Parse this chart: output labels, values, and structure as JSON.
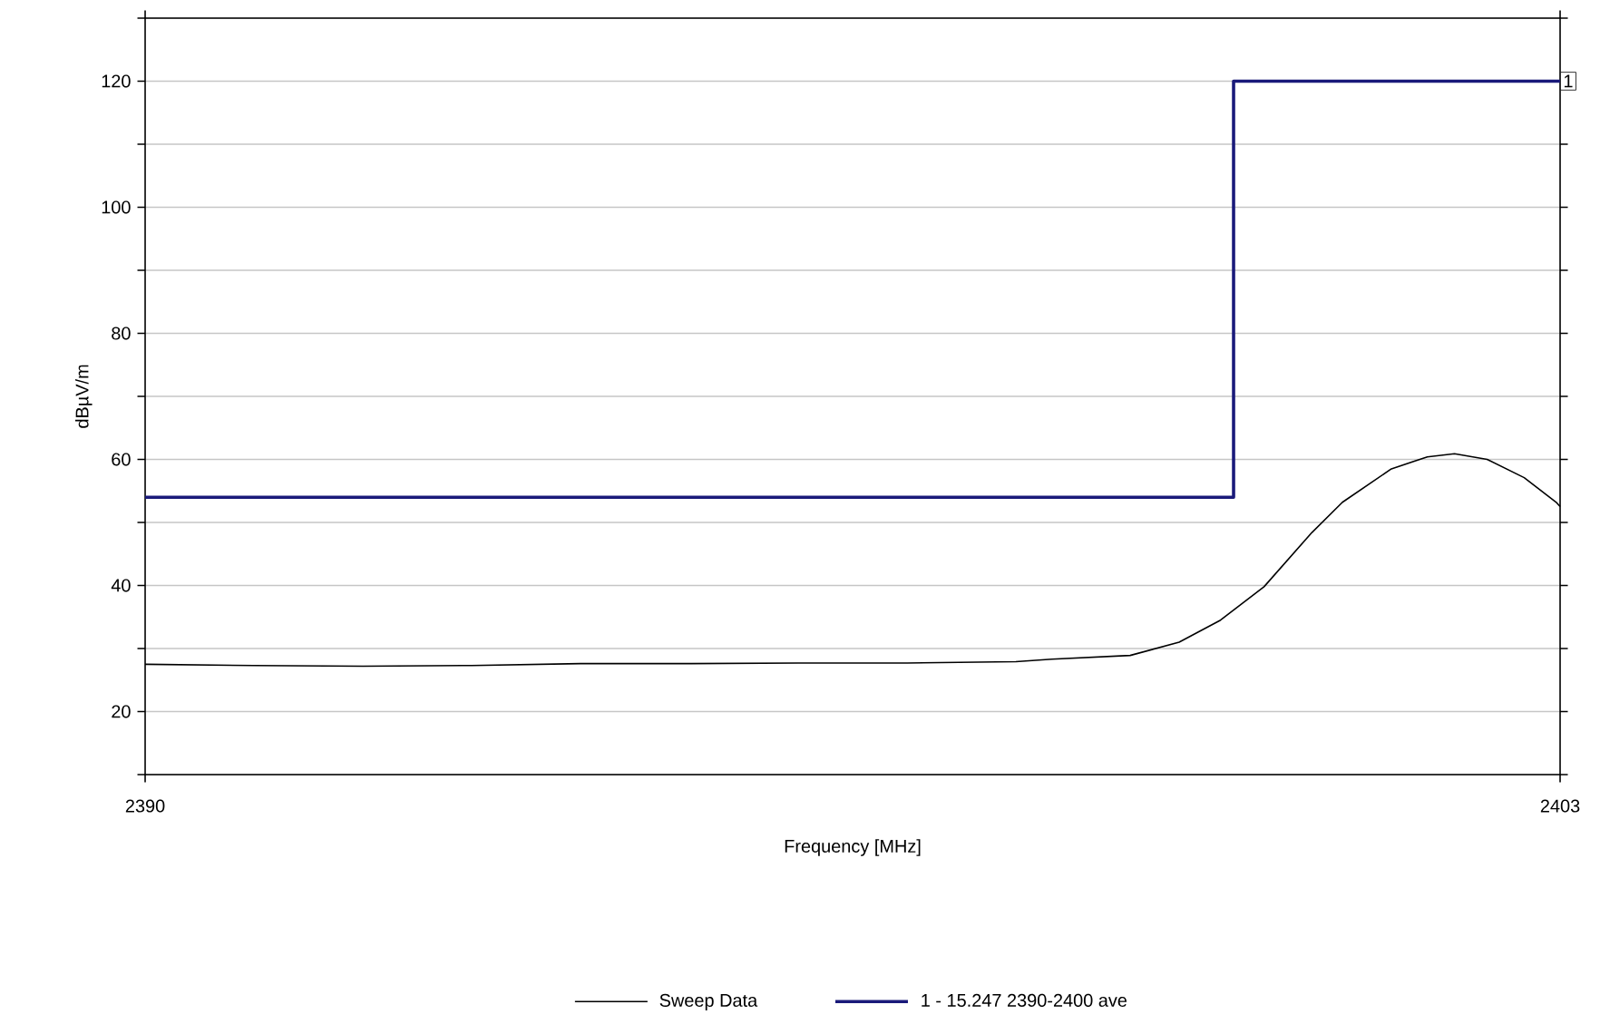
{
  "chart_data": {
    "type": "line",
    "xlabel": "Frequency [MHz]",
    "ylabel": "dBµV/m",
    "xlim": [
      2390,
      2403
    ],
    "xticks": [
      2390,
      2403
    ],
    "ylim": [
      10,
      130
    ],
    "yticks": [
      {
        "value": 10,
        "label": null
      },
      20,
      {
        "value": 30,
        "label": null
      },
      40,
      {
        "value": 50,
        "label": null
      },
      60,
      {
        "value": 70,
        "label": null
      },
      80,
      {
        "value": 90,
        "label": null
      },
      100,
      {
        "value": 110,
        "label": null
      },
      120,
      {
        "value": 130,
        "label": null
      }
    ],
    "grid": "y",
    "legend": "bottom",
    "marker": "none",
    "series": [
      {
        "name": "Sweep Data",
        "color": "#000000",
        "x": [
          2390,
          2391,
          2392,
          2393,
          2394,
          2395,
          2396,
          2397,
          2398,
          2398.33,
          2399.05,
          2399.5,
          2399.88,
          2400.28,
          2400.72,
          2401.0,
          2401.45,
          2401.78,
          2402.03,
          2402.33,
          2402.67,
          2402.97,
          2403
        ],
        "values": [
          27.5,
          27.3,
          27.2,
          27.3,
          27.6,
          27.6,
          27.7,
          27.7,
          27.9,
          28.3,
          28.9,
          31,
          34.5,
          39.8,
          48.4,
          53.2,
          58.5,
          60.4,
          60.9,
          60,
          57.1,
          53.1,
          52.5
        ]
      },
      {
        "name": "1 - 15.247 2390-2400 ave",
        "color": "#1a1a7a",
        "type": "step",
        "x": [
          2390,
          2400,
          2403
        ],
        "values": [
          54,
          120,
          120
        ]
      }
    ],
    "annotations": [
      {
        "text": "1",
        "x": 2403,
        "y": 120
      }
    ]
  }
}
